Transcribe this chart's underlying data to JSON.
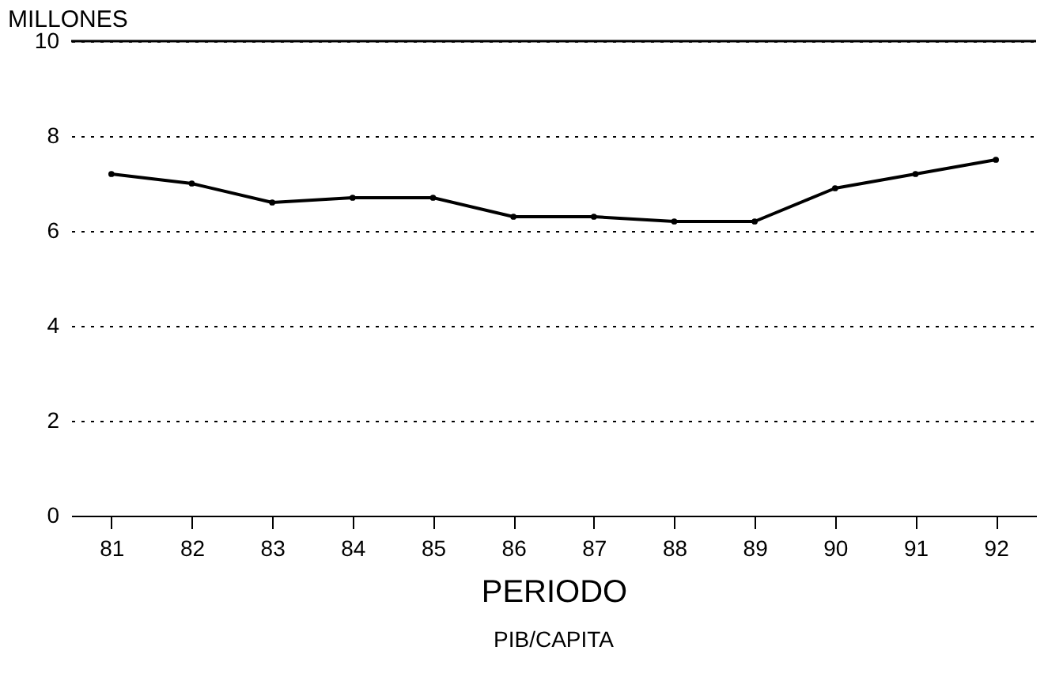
{
  "chart_data": {
    "type": "line",
    "title": "PIB/CAPITA",
    "xlabel": "PERIODO",
    "ylabel": "MILLONES",
    "categories": [
      "81",
      "82",
      "83",
      "84",
      "85",
      "86",
      "87",
      "88",
      "89",
      "90",
      "91",
      "92"
    ],
    "series": [
      {
        "color": "#000000",
        "values": [
          7.2,
          7.0,
          6.6,
          6.7,
          6.7,
          6.3,
          6.3,
          6.2,
          6.2,
          6.9,
          7.2,
          7.5
        ]
      }
    ],
    "ylim": [
      0,
      10
    ],
    "yticks": [
      0,
      2,
      4,
      6,
      8,
      10
    ],
    "grid": "y",
    "marker": "circle",
    "line_style": "solid"
  }
}
